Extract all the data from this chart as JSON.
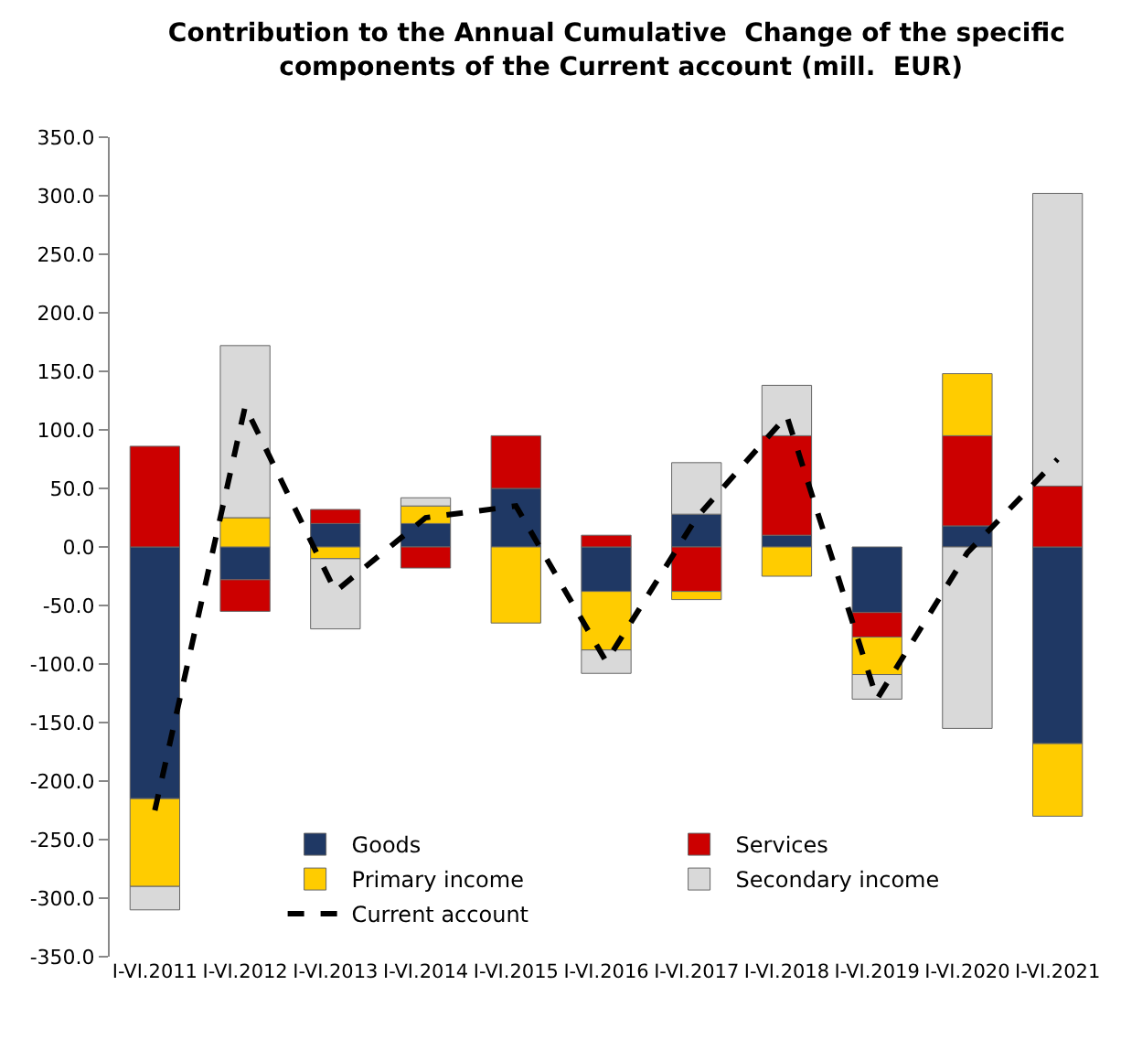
{
  "chart_data": {
    "type": "bar",
    "stacked": true,
    "title": "Contribution to the Annual Cumulative  Change of the specific components of the Current account (mill.  EUR)",
    "categories": [
      "I-VI.2011",
      "I-VI.2012",
      "I-VI.2013",
      "I-VI.2014",
      "I-VI.2015",
      "I-VI.2016",
      "I-VI.2017",
      "I-VI.2018",
      "I-VI.2019",
      "I-VI.2020",
      "I-VI.2021"
    ],
    "series": [
      {
        "name": "Goods",
        "color": "#1f3864",
        "values": [
          -215,
          -28,
          20,
          20,
          50,
          -38,
          28,
          10,
          -56,
          18,
          -168
        ]
      },
      {
        "name": "Services",
        "color": "#cc0000",
        "values": [
          86,
          -27,
          12,
          -18,
          45,
          10,
          -38,
          85,
          -21,
          77,
          52
        ]
      },
      {
        "name": "Primary income",
        "color": "#ffcc00",
        "values": [
          -75,
          25,
          -10,
          15,
          -65,
          -50,
          -7,
          -25,
          -32,
          53,
          -62
        ]
      },
      {
        "name": "Secondary income",
        "color": "#d9d9d9",
        "values": [
          -20,
          147,
          -60,
          7,
          null,
          -20,
          44,
          43,
          -21,
          -155,
          250
        ]
      },
      {
        "name": "Current account",
        "type": "line",
        "color": "#000000",
        "line_style": "dashed",
        "marker": "none",
        "values": [
          -225,
          120,
          -38,
          25,
          35,
          -98,
          25,
          112,
          -130,
          -5,
          75
        ]
      }
    ],
    "ylim": [
      -350,
      350
    ],
    "yticks": [
      {
        "value": -350,
        "label": "-350.0"
      },
      {
        "value": -300,
        "label": "-300.0"
      },
      {
        "value": -250,
        "label": "-250.0"
      },
      {
        "value": -200,
        "label": "-200.0"
      },
      {
        "value": -150,
        "label": "-150.0"
      },
      {
        "value": -100,
        "label": "-100.0"
      },
      {
        "value": -50,
        "label": "-50.0"
      },
      {
        "value": 0,
        "label": "0.0"
      },
      {
        "value": 50,
        "label": "50.0"
      },
      {
        "value": 100,
        "label": "100.0"
      },
      {
        "value": 150,
        "label": "150.0"
      },
      {
        "value": 200,
        "label": "200.0"
      },
      {
        "value": 250,
        "label": "250.0"
      },
      {
        "value": 300,
        "label": "300.0"
      },
      {
        "value": 350,
        "label": "350.0"
      }
    ],
    "legend": "bottom"
  }
}
